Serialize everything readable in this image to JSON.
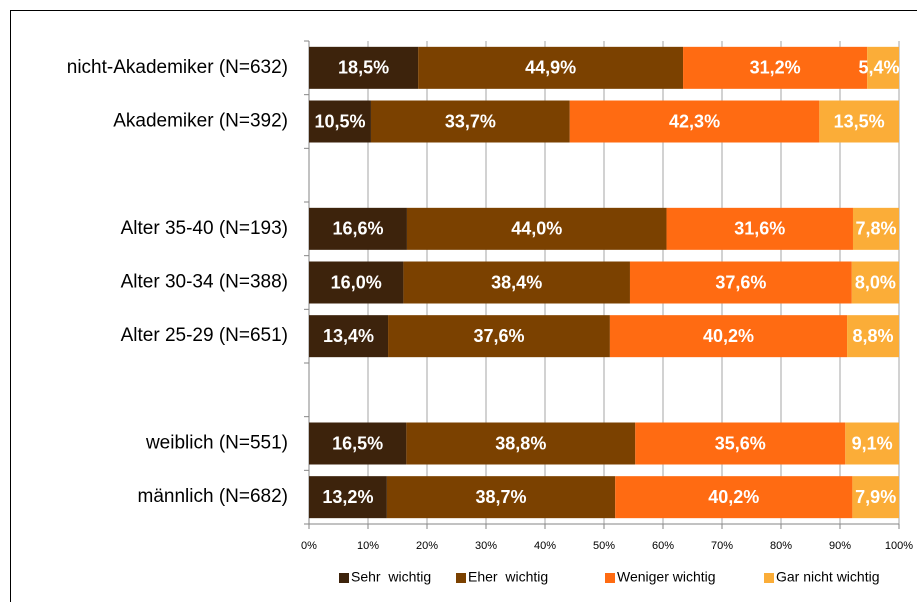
{
  "chart_data": {
    "type": "stacked_barh",
    "categories": [
      "nicht-Akademiker (N=632)",
      "Akademiker (N=392)",
      null,
      "Alter 35-40 (N=193)",
      "Alter 30-34 (N=388)",
      "Alter 25-29 (N=651)",
      null,
      "weiblich (N=551)",
      "männlich (N=682)"
    ],
    "series": [
      {
        "name": "Sehr  wichtig",
        "color": "#3d230c",
        "values": [
          18.5,
          10.5,
          null,
          16.6,
          16.0,
          13.4,
          null,
          16.5,
          13.2
        ],
        "value_labels": [
          "18,5%",
          "10,5%",
          null,
          "16,6%",
          "16,0%",
          "13,4%",
          null,
          "16,5%",
          "13,2%"
        ]
      },
      {
        "name": "Eher  wichtig",
        "color": "#7b4100",
        "values": [
          44.9,
          33.7,
          null,
          44.0,
          38.4,
          37.6,
          null,
          38.8,
          38.7
        ],
        "value_labels": [
          "44,9%",
          "33,7%",
          null,
          "44,0%",
          "38,4%",
          "37,6%",
          null,
          "38,8%",
          "38,7%"
        ]
      },
      {
        "name": "Weniger wichtig",
        "color": "#ff6b12",
        "values": [
          31.2,
          42.3,
          null,
          31.6,
          37.6,
          40.2,
          null,
          35.6,
          40.2
        ],
        "value_labels": [
          "31,2%",
          "42,3%",
          null,
          "31,6%",
          "37,6%",
          "40,2%",
          null,
          "35,6%",
          "40,2%"
        ]
      },
      {
        "name": "Gar nicht wichtig",
        "color": "#fbad38",
        "values": [
          5.4,
          13.5,
          null,
          7.8,
          8.0,
          8.8,
          null,
          9.1,
          7.9
        ],
        "value_labels": [
          "5,4%",
          "13,5%",
          null,
          "7,8%",
          "8,0%",
          "8,8%",
          null,
          "9,1%",
          "7,9%"
        ]
      }
    ],
    "xlim": [
      0,
      100
    ],
    "xticks": [
      {
        "value": 0,
        "label": "0%"
      },
      {
        "value": 10,
        "label": "10%"
      },
      {
        "value": 20,
        "label": "20%"
      },
      {
        "value": 30,
        "label": "30%"
      },
      {
        "value": 40,
        "label": "40%"
      },
      {
        "value": 50,
        "label": "50%"
      },
      {
        "value": 60,
        "label": "60%"
      },
      {
        "value": 70,
        "label": "70%"
      },
      {
        "value": 80,
        "label": "80%"
      },
      {
        "value": 90,
        "label": "90%"
      },
      {
        "value": 100,
        "label": "100%"
      }
    ],
    "grid": true,
    "legend": "bottom"
  }
}
